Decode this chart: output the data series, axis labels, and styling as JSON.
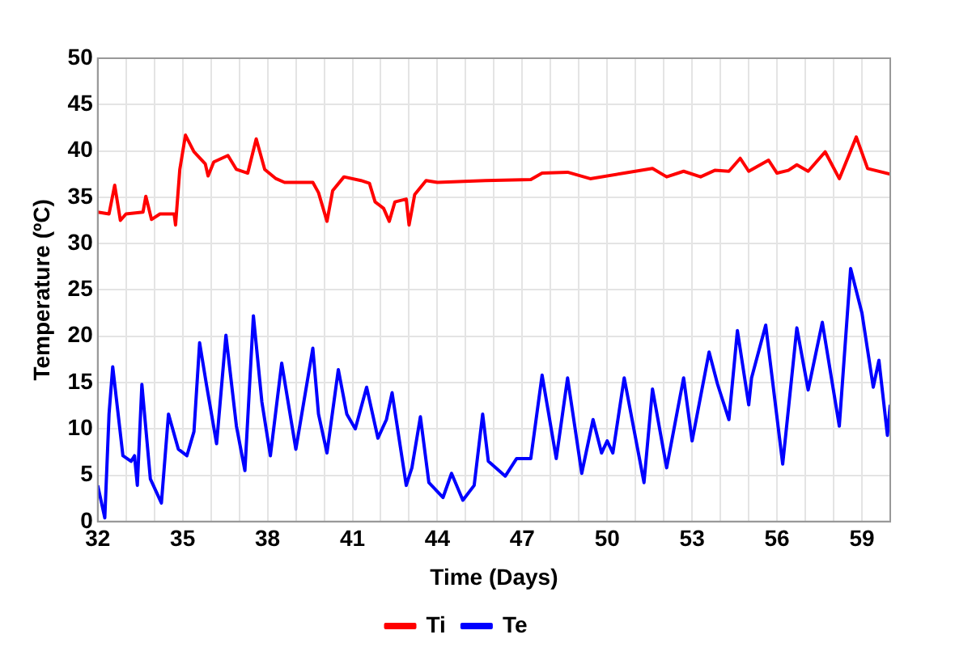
{
  "chart_data": {
    "type": "line",
    "xlabel": "Time (Days)",
    "ylabel": "Temperature (ºC)",
    "xlim": [
      32,
      60
    ],
    "ylim": [
      0,
      50
    ],
    "xticks": [
      32,
      {
        "value": 33,
        "label": null
      },
      {
        "value": 34,
        "label": null
      },
      35,
      {
        "value": 36,
        "label": null
      },
      {
        "value": 37,
        "label": null
      },
      38,
      {
        "value": 39,
        "label": null
      },
      {
        "value": 40,
        "label": null
      },
      41,
      {
        "value": 42,
        "label": null
      },
      {
        "value": 43,
        "label": null
      },
      44,
      {
        "value": 45,
        "label": null
      },
      {
        "value": 46,
        "label": null
      },
      47,
      {
        "value": 48,
        "label": null
      },
      {
        "value": 49,
        "label": null
      },
      50,
      {
        "value": 51,
        "label": null
      },
      {
        "value": 52,
        "label": null
      },
      53,
      {
        "value": 54,
        "label": null
      },
      {
        "value": 55,
        "label": null
      },
      56,
      {
        "value": 57,
        "label": null
      },
      {
        "value": 58,
        "label": null
      },
      59,
      {
        "value": 60,
        "label": null
      }
    ],
    "yticks": [
      0,
      5,
      10,
      15,
      20,
      25,
      30,
      35,
      40,
      45,
      50
    ],
    "grid": true,
    "legend": "bottom",
    "marker": "none",
    "line_style": "solid",
    "series": [
      {
        "name": "Ti",
        "color": "#ff0000",
        "x": [
          32.0,
          32.4,
          32.6,
          32.8,
          33.0,
          33.6,
          33.7,
          33.9,
          34.2,
          34.7,
          34.75,
          34.9,
          35.1,
          35.4,
          35.8,
          35.9,
          36.1,
          36.6,
          36.9,
          37.3,
          37.6,
          37.9,
          38.3,
          38.6,
          39.6,
          39.8,
          40.1,
          40.3,
          40.7,
          41.3,
          41.6,
          41.8,
          42.1,
          42.3,
          42.5,
          42.9,
          43.0,
          43.2,
          43.6,
          44.0,
          45.7,
          47.3,
          47.7,
          48.6,
          49.4,
          50.6,
          51.6,
          52.1,
          52.7,
          53.3,
          53.8,
          54.3,
          54.7,
          55.0,
          55.7,
          56.0,
          56.4,
          56.7,
          57.1,
          57.7,
          58.2,
          58.8,
          59.2,
          60.0
        ],
        "values": [
          33.4,
          33.2,
          36.3,
          32.5,
          33.2,
          33.4,
          35.1,
          32.6,
          33.2,
          33.2,
          32.0,
          38.0,
          41.7,
          39.9,
          38.6,
          37.3,
          38.8,
          39.5,
          38.0,
          37.6,
          41.3,
          38.0,
          37.0,
          36.6,
          36.6,
          35.5,
          32.4,
          35.7,
          37.2,
          36.8,
          36.5,
          34.5,
          33.8,
          32.4,
          34.5,
          34.8,
          32.0,
          35.3,
          36.8,
          36.6,
          36.8,
          36.9,
          37.6,
          37.7,
          37.0,
          37.6,
          38.1,
          37.2,
          37.8,
          37.2,
          37.9,
          37.8,
          39.2,
          37.8,
          39.0,
          37.6,
          37.9,
          38.5,
          37.8,
          39.9,
          37.0,
          41.5,
          38.1,
          37.5
        ]
      },
      {
        "name": "Te",
        "color": "#0000ff",
        "x": [
          32.0,
          32.25,
          32.4,
          32.53,
          32.89,
          33.18,
          33.3,
          33.4,
          33.56,
          33.86,
          34.25,
          34.5,
          34.85,
          35.15,
          35.4,
          35.6,
          35.84,
          36.2,
          36.53,
          36.9,
          37.2,
          37.5,
          37.8,
          38.1,
          38.5,
          39.0,
          39.6,
          39.8,
          40.1,
          40.5,
          40.8,
          41.1,
          41.5,
          41.9,
          42.2,
          42.4,
          42.9,
          43.1,
          43.4,
          43.7,
          44.2,
          44.5,
          44.9,
          45.3,
          45.6,
          45.8,
          46.4,
          46.8,
          47.3,
          47.7,
          48.2,
          48.6,
          49.1,
          49.5,
          49.8,
          50.0,
          50.2,
          50.6,
          51.3,
          51.6,
          52.1,
          52.6,
          52.7,
          53.0,
          53.6,
          53.9,
          54.3,
          54.6,
          55.0,
          55.1,
          55.6,
          56.2,
          56.7,
          57.1,
          57.6,
          58.2,
          58.6,
          59.0,
          59.4,
          59.6,
          59.9,
          60.0
        ],
        "values": [
          3.9,
          0.4,
          11.6,
          16.7,
          7.1,
          6.5,
          7.1,
          3.9,
          14.8,
          4.6,
          2.0,
          11.6,
          7.8,
          7.1,
          9.7,
          19.3,
          14.8,
          8.4,
          20.1,
          10.3,
          5.5,
          22.2,
          12.9,
          7.1,
          17.1,
          7.8,
          18.7,
          11.6,
          7.4,
          16.4,
          11.6,
          10.0,
          14.5,
          9.0,
          11.0,
          13.9,
          3.9,
          5.8,
          11.3,
          4.2,
          2.6,
          5.2,
          2.3,
          3.9,
          11.6,
          6.5,
          4.9,
          6.8,
          6.8,
          15.8,
          6.8,
          15.5,
          5.2,
          11.0,
          7.4,
          8.7,
          7.4,
          15.5,
          4.2,
          14.3,
          5.8,
          13.9,
          15.5,
          8.7,
          18.3,
          14.8,
          11.0,
          20.6,
          12.6,
          15.5,
          21.2,
          6.2,
          20.9,
          14.2,
          21.5,
          10.3,
          27.3,
          22.5,
          14.5,
          17.4,
          9.3,
          12.6
        ]
      }
    ]
  }
}
